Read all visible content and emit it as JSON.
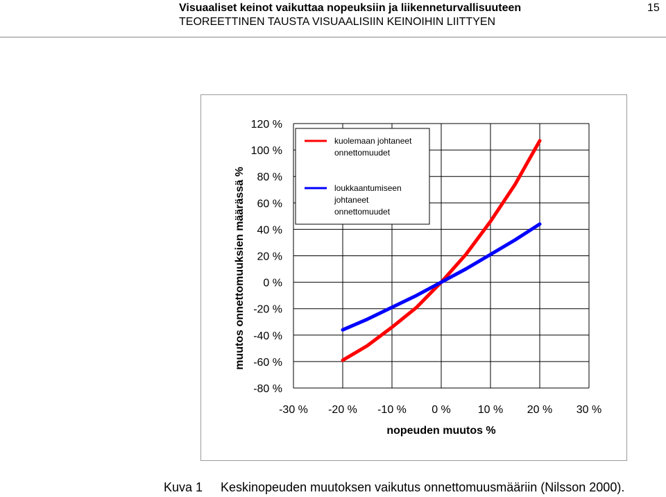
{
  "header": {
    "title": "Visuaaliset keinot vaikuttaa nopeuksiin ja liikenneturvallisuuteen",
    "subtitle": "TEOREETTINEN TAUSTA VISUAALISIIN KEINOIHIN LIITTYEN",
    "page_number": "15"
  },
  "caption": {
    "label": "Kuva 1",
    "text": "Keskinopeuden muutoksen vaikutus onnettomuusmääriin (Nilsson 2000)."
  },
  "chart_data": {
    "type": "line",
    "title": "",
    "xlabel": "nopeuden muutos %",
    "ylabel": "muutos onnettomuuksien määrässä %",
    "xlim": [
      -30,
      30
    ],
    "ylim": [
      -80,
      120
    ],
    "x_ticks": [
      -30,
      -20,
      -10,
      0,
      10,
      20,
      30
    ],
    "y_ticks": [
      -80,
      -60,
      -40,
      -20,
      0,
      20,
      40,
      60,
      80,
      100,
      120
    ],
    "x_tick_labels": [
      "-30 %",
      "-20 %",
      "-10 %",
      "0 %",
      "10 %",
      "20 %",
      "30 %"
    ],
    "y_tick_labels": [
      "-80 %",
      "-60 %",
      "-40 %",
      "-20 %",
      "0 %",
      "20 %",
      "40 %",
      "60 %",
      "80 %",
      "100 %",
      "120 %"
    ],
    "grid": true,
    "legend_position": "top-left",
    "series": [
      {
        "name": "kuolemaan johtaneet onnettomuudet",
        "legend_lines": [
          "kuolemaan johtaneet",
          "onnettomuudet"
        ],
        "color": "#ff0000",
        "x": [
          -20,
          -15,
          -10,
          -5,
          0,
          5,
          10,
          15,
          20
        ],
        "y": [
          -59,
          -48,
          -34,
          -19,
          0,
          21,
          46,
          74,
          107
        ]
      },
      {
        "name": "loukkaantumiseen johtaneet onnettomuudet",
        "legend_lines": [
          "loukkaantumiseen",
          "johtaneet",
          "onnettomuudet"
        ],
        "color": "#0000ff",
        "x": [
          -20,
          -15,
          -10,
          -5,
          0,
          5,
          10,
          15,
          20
        ],
        "y": [
          -36,
          -28,
          -19,
          -10,
          0,
          10,
          21,
          32,
          44
        ]
      }
    ]
  }
}
